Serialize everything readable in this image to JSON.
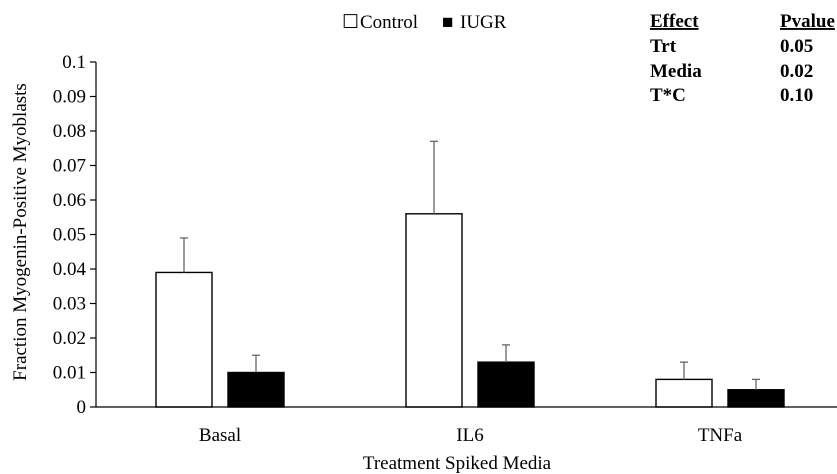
{
  "chart_data": {
    "type": "bar",
    "title": "",
    "xlabel": "Treatment Spiked Media",
    "ylabel": "Fraction Myogenin-Positive Myoblasts",
    "ylim": [
      0,
      0.1
    ],
    "yticks": [
      "0",
      "0.01",
      "0.02",
      "0.03",
      "0.04",
      "0.05",
      "0.06",
      "0.07",
      "0.08",
      "0.09",
      "0.1"
    ],
    "categories": [
      "Basal",
      "IL6",
      "TNFa"
    ],
    "series": [
      {
        "name": "Control",
        "color": "#ffffff",
        "values": [
          0.039,
          0.056,
          0.008
        ],
        "errors": [
          0.01,
          0.021,
          0.005
        ]
      },
      {
        "name": "IUGR",
        "color": "#000000",
        "values": [
          0.01,
          0.013,
          0.005
        ],
        "errors": [
          0.005,
          0.005,
          0.003
        ]
      }
    ],
    "legend": {
      "placement": "top-center",
      "markers": [
        "☐",
        "■"
      ]
    },
    "grid": false
  },
  "stats_table": {
    "headers": [
      "Effect",
      "Pvalue"
    ],
    "rows": [
      [
        "Trt",
        "0.05"
      ],
      [
        "Media",
        "0.02"
      ],
      [
        "T*C",
        "0.10"
      ]
    ]
  }
}
